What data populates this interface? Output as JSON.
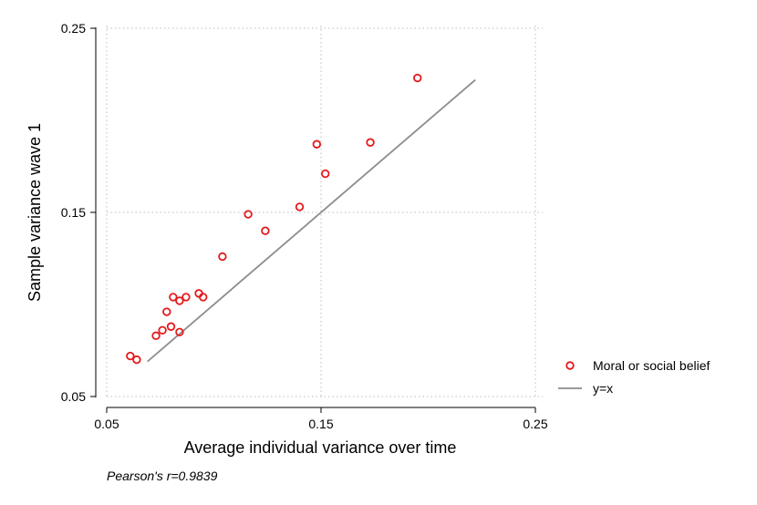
{
  "chart_data": {
    "type": "scatter",
    "title": "",
    "xlabel": "Average individual variance over time",
    "ylabel": "Sample variance wave 1",
    "xlim": [
      0.05,
      0.25
    ],
    "ylim": [
      0.05,
      0.25
    ],
    "xticks": [
      0.05,
      0.15,
      0.25
    ],
    "yticks": [
      0.05,
      0.15,
      0.25
    ],
    "xtick_labels": [
      "0.05",
      "0.15",
      "0.25"
    ],
    "ytick_labels": [
      "0.05",
      "0.15",
      "0.25"
    ],
    "grid": true,
    "legend_position": "right",
    "series": [
      {
        "name": "Moral or social belief",
        "kind": "scatter",
        "color": "#e41a1c",
        "points": [
          {
            "x": 0.061,
            "y": 0.072
          },
          {
            "x": 0.064,
            "y": 0.07
          },
          {
            "x": 0.073,
            "y": 0.083
          },
          {
            "x": 0.076,
            "y": 0.086
          },
          {
            "x": 0.078,
            "y": 0.096
          },
          {
            "x": 0.08,
            "y": 0.088
          },
          {
            "x": 0.081,
            "y": 0.104
          },
          {
            "x": 0.084,
            "y": 0.102
          },
          {
            "x": 0.084,
            "y": 0.085
          },
          {
            "x": 0.087,
            "y": 0.104
          },
          {
            "x": 0.093,
            "y": 0.106
          },
          {
            "x": 0.095,
            "y": 0.104
          },
          {
            "x": 0.104,
            "y": 0.126
          },
          {
            "x": 0.116,
            "y": 0.149
          },
          {
            "x": 0.124,
            "y": 0.14
          },
          {
            "x": 0.14,
            "y": 0.153
          },
          {
            "x": 0.148,
            "y": 0.187
          },
          {
            "x": 0.152,
            "y": 0.171
          },
          {
            "x": 0.173,
            "y": 0.188
          },
          {
            "x": 0.195,
            "y": 0.223
          }
        ]
      },
      {
        "name": "y=x",
        "kind": "line",
        "color": "#8c8c8c",
        "x": [
          0.069,
          0.222
        ],
        "y": [
          0.069,
          0.222
        ]
      }
    ],
    "annotations": [
      {
        "text": "Pearson's r=0.9839"
      }
    ]
  }
}
